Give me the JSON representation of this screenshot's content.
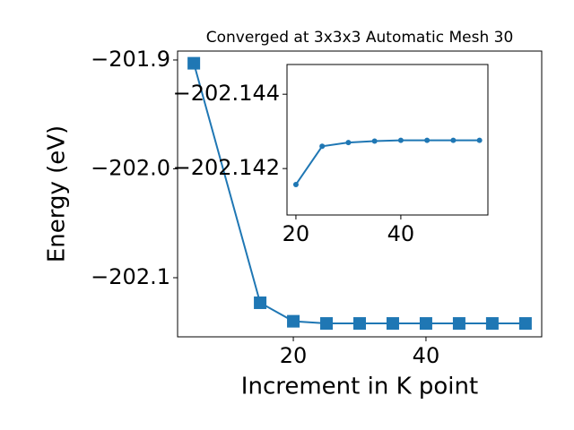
{
  "chart_data": [
    {
      "type": "line",
      "title": "Converged at 3x3x3 Automatic Mesh 30",
      "xlabel": "Increment in K point",
      "ylabel": "Energy (eV)",
      "x": [
        5,
        15,
        20,
        25,
        30,
        35,
        40,
        45,
        50,
        55
      ],
      "series": [
        {
          "color": "#1f77b4",
          "marker": "square",
          "values": [
            -201.903,
            -202.123,
            -202.14,
            -202.142,
            -202.142,
            -202.142,
            -202.142,
            -202.142,
            -202.142,
            -202.142
          ]
        }
      ],
      "xlim": [
        2.55,
        57.45
      ],
      "ylim": [
        -202.1543,
        -201.8918
      ],
      "xticks": [
        20,
        40
      ],
      "yticks": [
        {
          "value": -201.9,
          "label": "−201.9"
        },
        {
          "value": -202.0,
          "label": "−202.0"
        },
        {
          "value": -202.1,
          "label": "−202.1"
        }
      ]
    },
    {
      "type": "line",
      "x": [
        20,
        25,
        30,
        35,
        40,
        45,
        50,
        55
      ],
      "series": [
        {
          "color": "#1f77b4",
          "marker": "circle",
          "values": [
            -202.14157,
            -202.1426,
            -202.1427,
            -202.14274,
            -202.14276,
            -202.14276,
            -202.14276,
            -202.14276
          ]
        }
      ],
      "xlim": [
        18.3,
        56.6
      ],
      "ylim": [
        -202.14075,
        -202.1448
      ],
      "xticks": [
        20,
        40
      ],
      "yticks": [
        {
          "value": -202.144,
          "label": "−202.144"
        },
        {
          "value": -202.142,
          "label": "−202.142"
        }
      ]
    }
  ]
}
